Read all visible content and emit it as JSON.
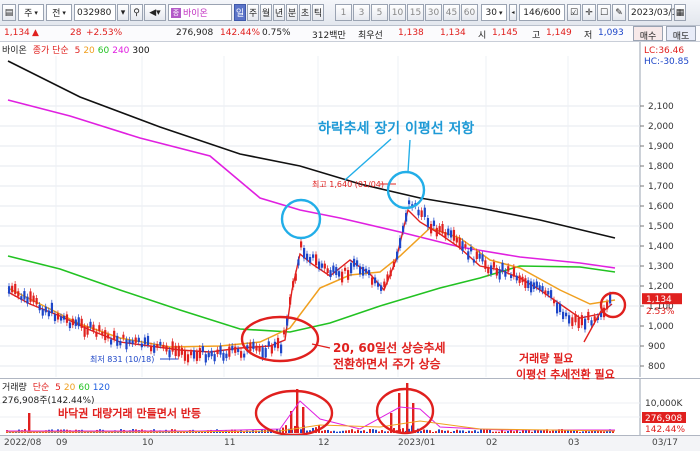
{
  "toolbar": {
    "market_select": "주",
    "type_select": "전",
    "stock_code": "032980",
    "stock_name": "바이온",
    "periods": [
      "일",
      "주",
      "월",
      "년",
      "분",
      "초",
      "틱"
    ],
    "active_period": "일",
    "minutes": [
      "1",
      "3",
      "5",
      "10",
      "15",
      "30",
      "45",
      "60"
    ],
    "tick_select": "30",
    "page_count": "146/600",
    "date": "2023/03/17",
    "buy_label": "매수",
    "sell_label": "매도"
  },
  "quote": {
    "price": "1,134",
    "change": "28",
    "change_pct": "+2.53%",
    "volume": "276,908",
    "volume_pct": "142.44%",
    "turnover_pct": "0.75%",
    "amount": "312백만",
    "best_ask_label": "최우선",
    "best_ask": "1,138",
    "best_bid": "1,134",
    "open_label": "시",
    "open": "1,145",
    "high_label": "고",
    "high": "1,149",
    "low_label": "저",
    "low": "1,093"
  },
  "price_chart": {
    "legend_name": "바이온",
    "legend_ma": "종가 단순",
    "ma_periods": [
      "5",
      "20",
      "60",
      "240",
      "300"
    ],
    "ma_colors": [
      "#e0201e",
      "#f0a020",
      "#22c222",
      "#e020e0",
      "#111111"
    ],
    "y_ticks": [
      "2,100",
      "2,000",
      "1,900",
      "1,800",
      "1,700",
      "1,600",
      "1,500",
      "1,400",
      "1,300",
      "1,200",
      "1,100",
      "1,000",
      "900",
      "800"
    ],
    "lc_label": "LC:36.46",
    "hc_label": "HC:-30.85",
    "current_price_tag": "1,134",
    "current_pct_tag": "2.53%",
    "high_annotation": "최고 1,640 (01/04)",
    "low_annotation": "최저 831 (10/18)"
  },
  "annotations": {
    "resist": "하락추세 장기 이평선 저항",
    "golden": "20, 60일선 상승추세",
    "golden2": "전환하면서 주가 상승",
    "need1": "거래량 필요",
    "need2": "이평선 추세전환 필요",
    "bottom": "바닥권 대량거래 만들면서 반등"
  },
  "volume_chart": {
    "legend_name": "거래량",
    "legend_ma": "단순",
    "ma_periods": [
      "5",
      "20",
      "60",
      "120"
    ],
    "value_label": "276,908주(142.44%)",
    "y_ticks": [
      "10,000K",
      "5,000K"
    ],
    "current_tag": "276,908",
    "pct_tag": "142.44%"
  },
  "date_axis": {
    "labels": [
      "2022/08",
      "09",
      "10",
      "11",
      "12",
      "2023/01",
      "02",
      "03"
    ],
    "right_label": "03/17"
  }
}
